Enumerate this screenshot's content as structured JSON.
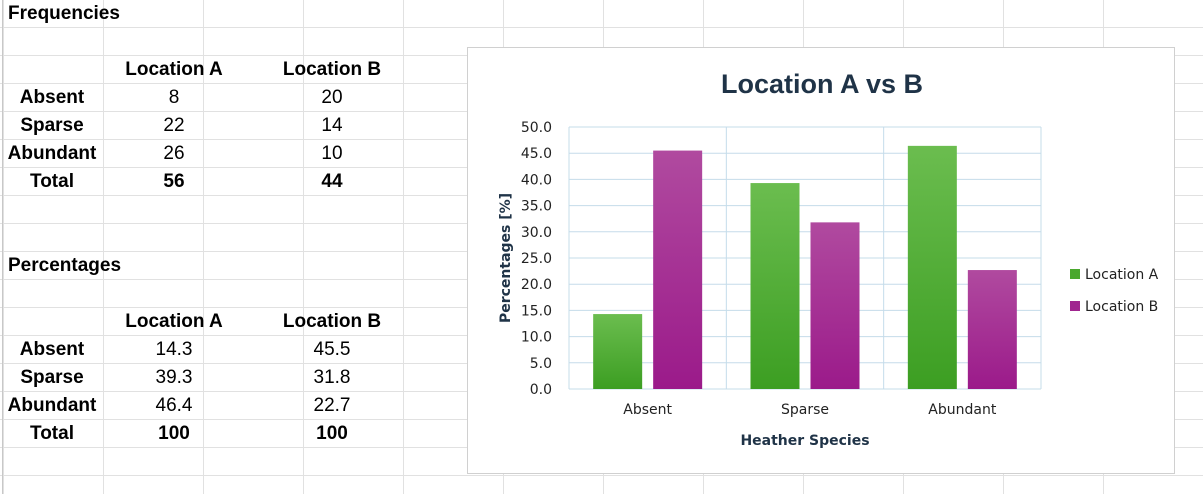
{
  "frequencies": {
    "title": "Frequencies",
    "columns": [
      "Location A",
      "Location B"
    ],
    "rows": [
      {
        "label": "Absent",
        "a": "8",
        "b": "20"
      },
      {
        "label": "Sparse",
        "a": "22",
        "b": "14"
      },
      {
        "label": "Abundant",
        "a": "26",
        "b": "10"
      },
      {
        "label": "Total",
        "a": "56",
        "b": "44"
      }
    ]
  },
  "percentages": {
    "title": "Percentages",
    "columns": [
      "Location A",
      "Location B"
    ],
    "rows": [
      {
        "label": "Absent",
        "a": "14.3",
        "b": "45.5"
      },
      {
        "label": "Sparse",
        "a": "39.3",
        "b": "31.8"
      },
      {
        "label": "Abundant",
        "a": "46.4",
        "b": "22.7"
      },
      {
        "label": "Total",
        "a": "100",
        "b": "100"
      }
    ]
  },
  "chart_data": {
    "type": "bar",
    "title": "Location A vs B",
    "xlabel": "Heather Species",
    "ylabel": "Percentages [%]",
    "categories": [
      "Absent",
      "Sparse",
      "Abundant"
    ],
    "series": [
      {
        "name": "Location A",
        "values": [
          14.3,
          39.3,
          46.4
        ],
        "color": "#4aa82e"
      },
      {
        "name": "Location B",
        "values": [
          45.5,
          31.8,
          22.7
        ],
        "color": "#a0258f"
      }
    ],
    "ylim": [
      0,
      50
    ],
    "y_ticks": [
      "0.0",
      "5.0",
      "10.0",
      "15.0",
      "20.0",
      "25.0",
      "30.0",
      "35.0",
      "40.0",
      "45.0",
      "50.0"
    ],
    "grid": true,
    "legend": "right"
  }
}
